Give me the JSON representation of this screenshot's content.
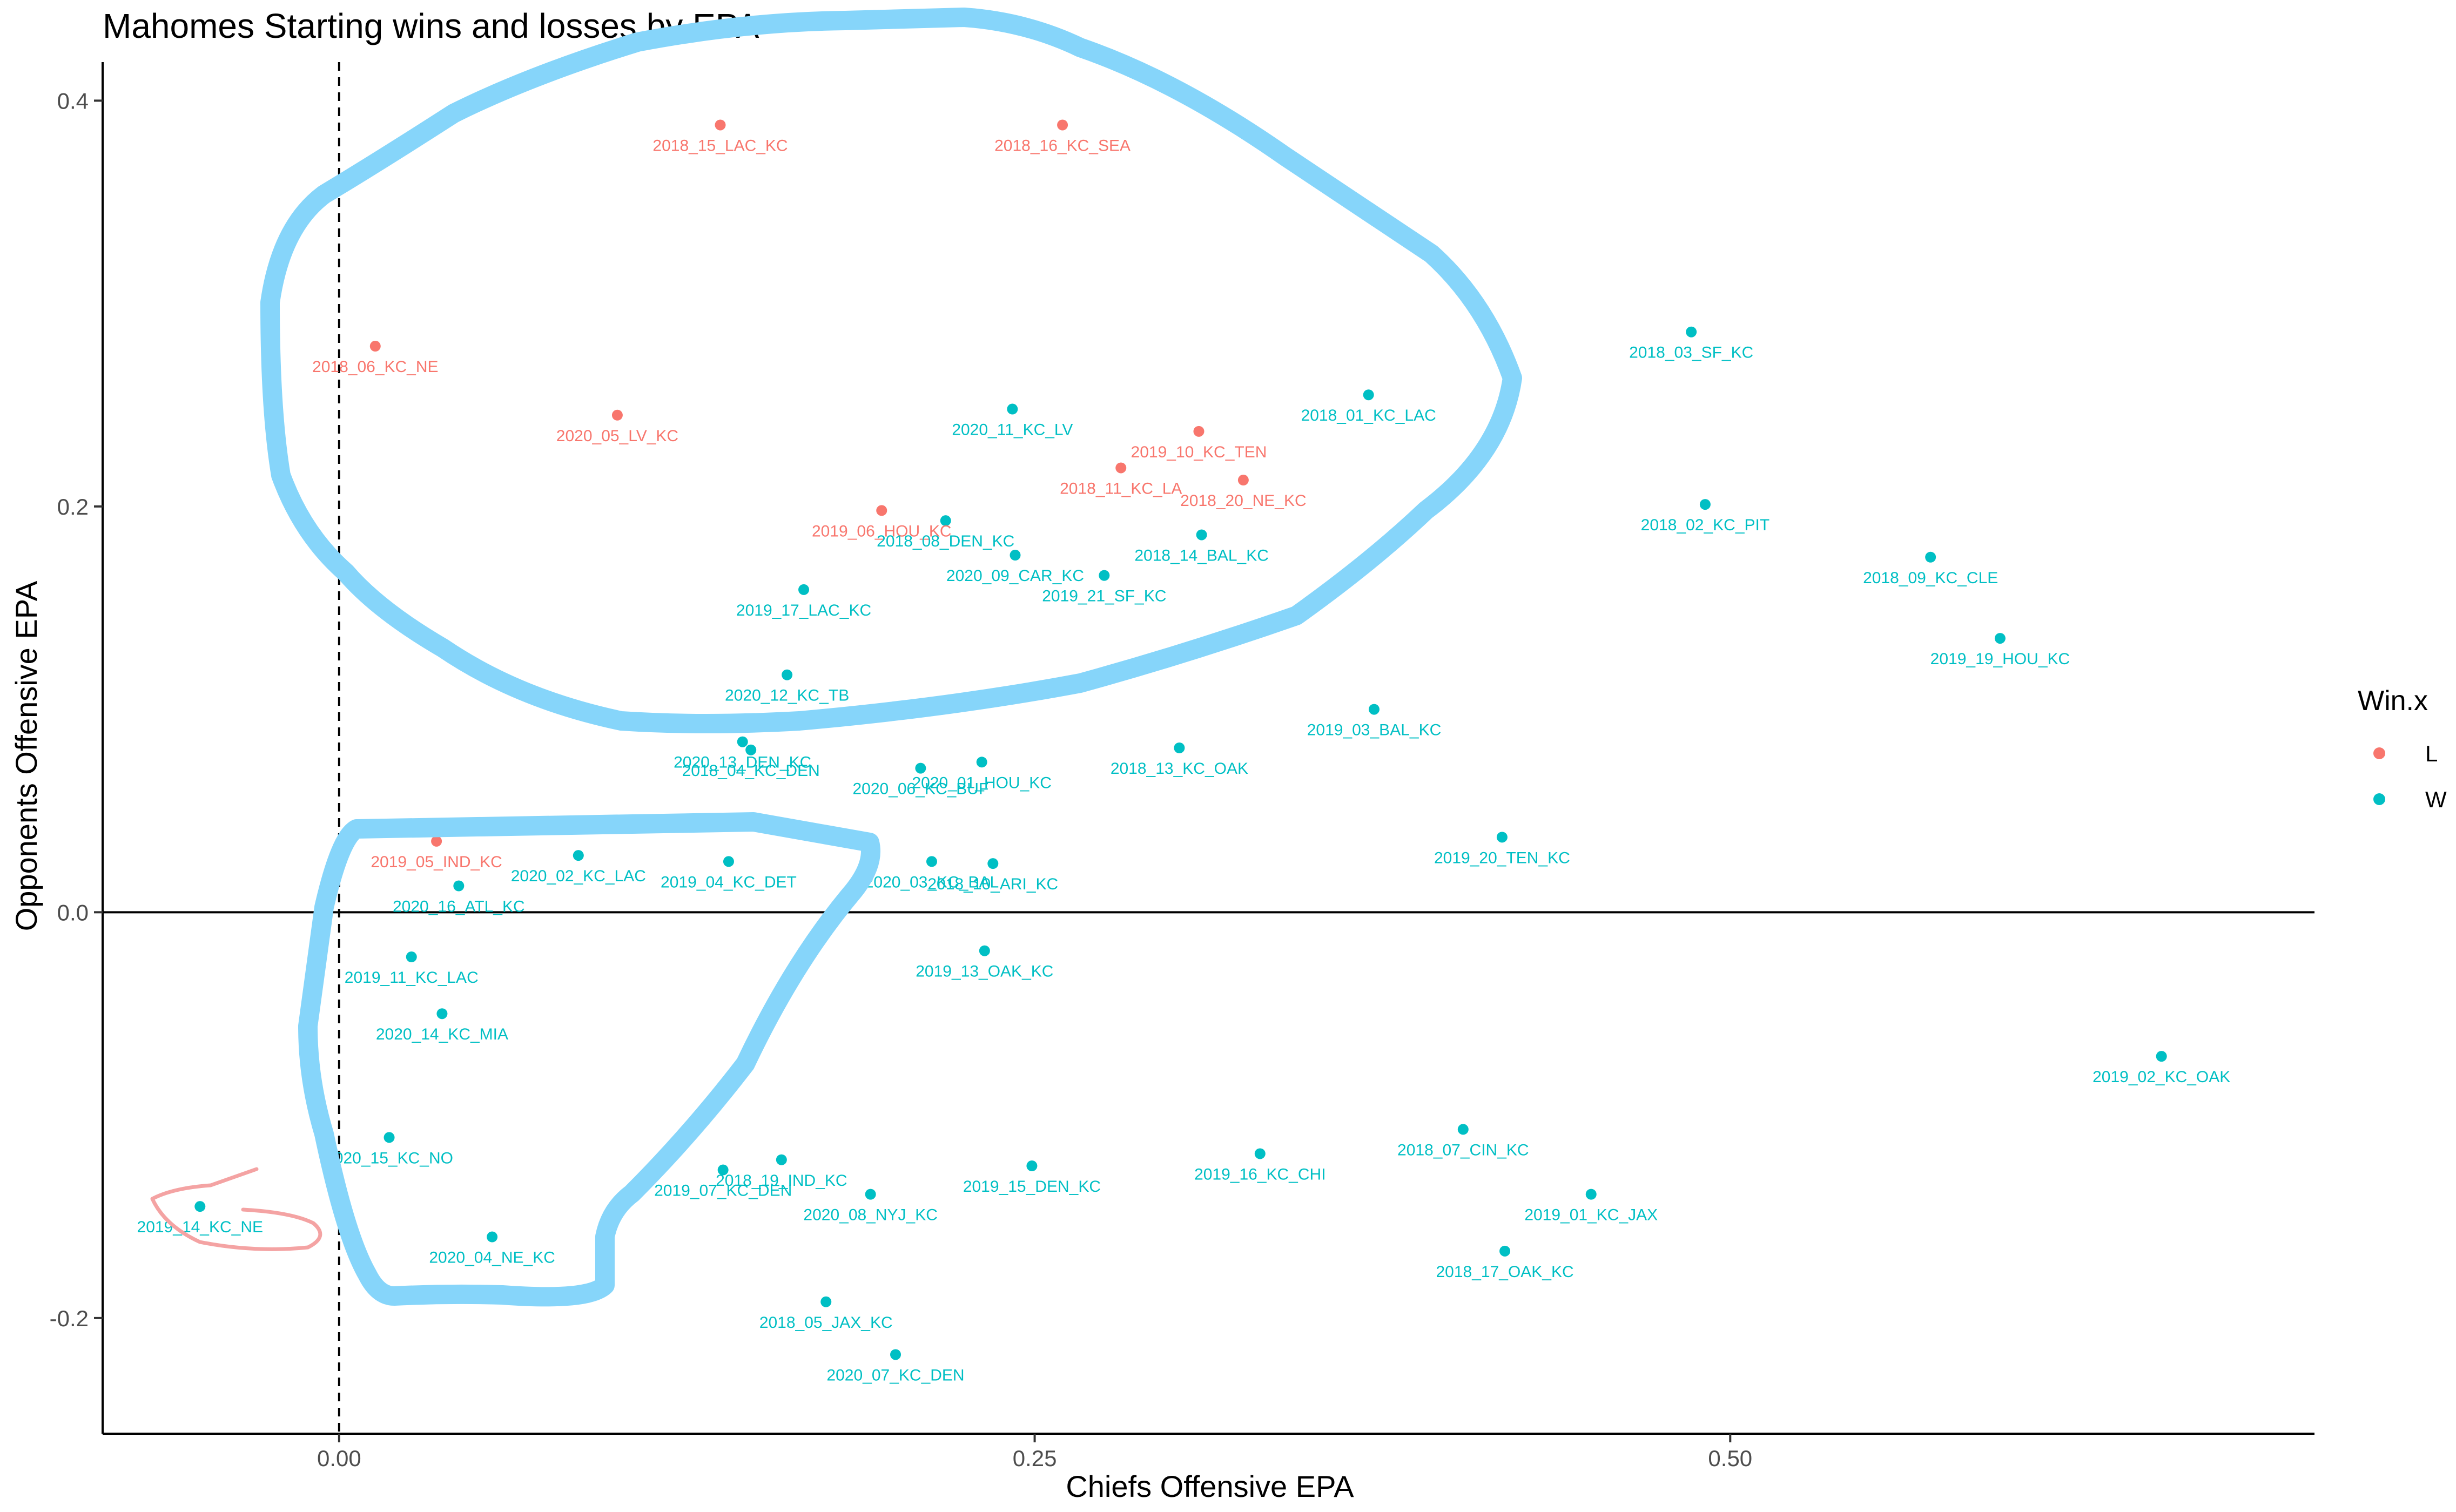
{
  "chart_data": {
    "type": "scatter",
    "title": "Mahomes Starting wins and losses by EPA",
    "xlabel": "Chiefs Offensive EPA",
    "ylabel": "Opponents Offensive EPA",
    "xlim": [
      -0.085,
      0.71
    ],
    "ylim": [
      -0.257,
      0.419
    ],
    "x_ticks": [
      {
        "value": 0.0,
        "label": "0.00"
      },
      {
        "value": 0.25,
        "label": "0.25"
      },
      {
        "value": 0.5,
        "label": "0.50"
      }
    ],
    "y_ticks": [
      {
        "value": -0.2,
        "label": "-0.2"
      },
      {
        "value": 0.0,
        "label": "0.0"
      },
      {
        "value": 0.2,
        "label": "0.2"
      },
      {
        "value": 0.4,
        "label": "0.4"
      }
    ],
    "reference_lines": {
      "vertical_dashed_x": 0.0,
      "horizontal_solid_y": 0.0
    },
    "legend": {
      "title": "Win.x",
      "position": "right",
      "entries": [
        {
          "key": "L",
          "label": "L",
          "color": "#F8766D"
        },
        {
          "key": "W",
          "label": "W",
          "color": "#00BFC4"
        }
      ]
    },
    "points": [
      {
        "label": "2018_15_LAC_KC",
        "x": 0.137,
        "y": 0.388,
        "win": "L"
      },
      {
        "label": "2018_16_KC_SEA",
        "x": 0.26,
        "y": 0.388,
        "win": "L"
      },
      {
        "label": "2018_06_KC_NE",
        "x": 0.013,
        "y": 0.279,
        "win": "L"
      },
      {
        "label": "2020_05_LV_KC",
        "x": 0.1,
        "y": 0.245,
        "win": "L"
      },
      {
        "label": "2019_10_KC_TEN",
        "x": 0.309,
        "y": 0.237,
        "win": "L"
      },
      {
        "label": "2018_11_KC_LA",
        "x": 0.281,
        "y": 0.219,
        "win": "L"
      },
      {
        "label": "2018_20_NE_KC",
        "x": 0.325,
        "y": 0.213,
        "win": "L"
      },
      {
        "label": "2019_06_HOU_KC",
        "x": 0.195,
        "y": 0.198,
        "win": "L"
      },
      {
        "label": "2019_05_IND_KC",
        "x": 0.035,
        "y": 0.035,
        "win": "L"
      },
      {
        "label": "2018_03_SF_KC",
        "x": 0.486,
        "y": 0.286,
        "win": "W"
      },
      {
        "label": "2018_01_KC_LAC",
        "x": 0.37,
        "y": 0.255,
        "win": "W"
      },
      {
        "label": "2020_11_KC_LV",
        "x": 0.242,
        "y": 0.248,
        "win": "W"
      },
      {
        "label": "2018_02_KC_PIT",
        "x": 0.491,
        "y": 0.201,
        "win": "W"
      },
      {
        "label": "2018_09_KC_CLE",
        "x": 0.572,
        "y": 0.175,
        "win": "W"
      },
      {
        "label": "2018_08_DEN_KC",
        "x": 0.218,
        "y": 0.193,
        "win": "W"
      },
      {
        "label": "2018_14_BAL_KC",
        "x": 0.31,
        "y": 0.186,
        "win": "W"
      },
      {
        "label": "2020_09_CAR_KC",
        "x": 0.243,
        "y": 0.176,
        "win": "W"
      },
      {
        "label": "2019_21_SF_KC",
        "x": 0.275,
        "y": 0.166,
        "win": "W"
      },
      {
        "label": "2019_17_LAC_KC",
        "x": 0.167,
        "y": 0.159,
        "win": "W"
      },
      {
        "label": "2019_19_HOU_KC",
        "x": 0.597,
        "y": 0.135,
        "win": "W"
      },
      {
        "label": "2020_12_KC_TB",
        "x": 0.161,
        "y": 0.117,
        "win": "W"
      },
      {
        "label": "2019_03_BAL_KC",
        "x": 0.372,
        "y": 0.1,
        "win": "W"
      },
      {
        "label": "2020_13_DEN_KC",
        "x": 0.145,
        "y": 0.084,
        "win": "W"
      },
      {
        "label": "2018_04_KC_DEN",
        "x": 0.148,
        "y": 0.08,
        "win": "W"
      },
      {
        "label": "2018_13_KC_OAK",
        "x": 0.302,
        "y": 0.081,
        "win": "W"
      },
      {
        "label": "2020_01_HOU_KC",
        "x": 0.231,
        "y": 0.074,
        "win": "W"
      },
      {
        "label": "2020_06_KC_BUF",
        "x": 0.209,
        "y": 0.071,
        "win": "W"
      },
      {
        "label": "2019_20_TEN_KC",
        "x": 0.418,
        "y": 0.037,
        "win": "W"
      },
      {
        "label": "2020_02_KC_LAC",
        "x": 0.086,
        "y": 0.028,
        "win": "W"
      },
      {
        "label": "2019_04_KC_DET",
        "x": 0.14,
        "y": 0.025,
        "win": "W"
      },
      {
        "label": "2020_03_KC_BAL",
        "x": 0.213,
        "y": 0.025,
        "win": "W"
      },
      {
        "label": "2018_10_ARI_KC",
        "x": 0.235,
        "y": 0.024,
        "win": "W"
      },
      {
        "label": "2020_16_ATL_KC",
        "x": 0.043,
        "y": 0.013,
        "win": "W"
      },
      {
        "label": "2019_11_KC_LAC",
        "x": 0.026,
        "y": -0.022,
        "win": "W"
      },
      {
        "label": "2019_13_OAK_KC",
        "x": 0.232,
        "y": -0.019,
        "win": "W"
      },
      {
        "label": "2020_14_KC_MIA",
        "x": 0.037,
        "y": -0.05,
        "win": "W"
      },
      {
        "label": "2019_02_KC_OAK",
        "x": 0.655,
        "y": -0.071,
        "win": "W"
      },
      {
        "label": "2020_15_KC_NO",
        "x": 0.018,
        "y": -0.111,
        "win": "W"
      },
      {
        "label": "2018_07_CIN_KC",
        "x": 0.404,
        "y": -0.107,
        "win": "W"
      },
      {
        "label": "2019_16_KC_CHI",
        "x": 0.331,
        "y": -0.119,
        "win": "W"
      },
      {
        "label": "2018_19_IND_KC",
        "x": 0.159,
        "y": -0.122,
        "win": "W"
      },
      {
        "label": "2019_07_KC_DEN",
        "x": 0.138,
        "y": -0.127,
        "win": "W"
      },
      {
        "label": "2019_15_DEN_KC",
        "x": 0.249,
        "y": -0.125,
        "win": "W"
      },
      {
        "label": "2020_08_NYJ_KC",
        "x": 0.191,
        "y": -0.139,
        "win": "W"
      },
      {
        "label": "2019_01_KC_JAX",
        "x": 0.45,
        "y": -0.139,
        "win": "W"
      },
      {
        "label": "2019_14_KC_NE",
        "x": -0.05,
        "y": -0.145,
        "win": "W"
      },
      {
        "label": "2020_04_NE_KC",
        "x": 0.055,
        "y": -0.16,
        "win": "W"
      },
      {
        "label": "2018_17_OAK_KC",
        "x": 0.419,
        "y": -0.167,
        "win": "W"
      },
      {
        "label": "2018_05_JAX_KC",
        "x": 0.175,
        "y": -0.192,
        "win": "W"
      },
      {
        "label": "2020_07_KC_DEN",
        "x": 0.2,
        "y": -0.218,
        "win": "W"
      }
    ]
  }
}
